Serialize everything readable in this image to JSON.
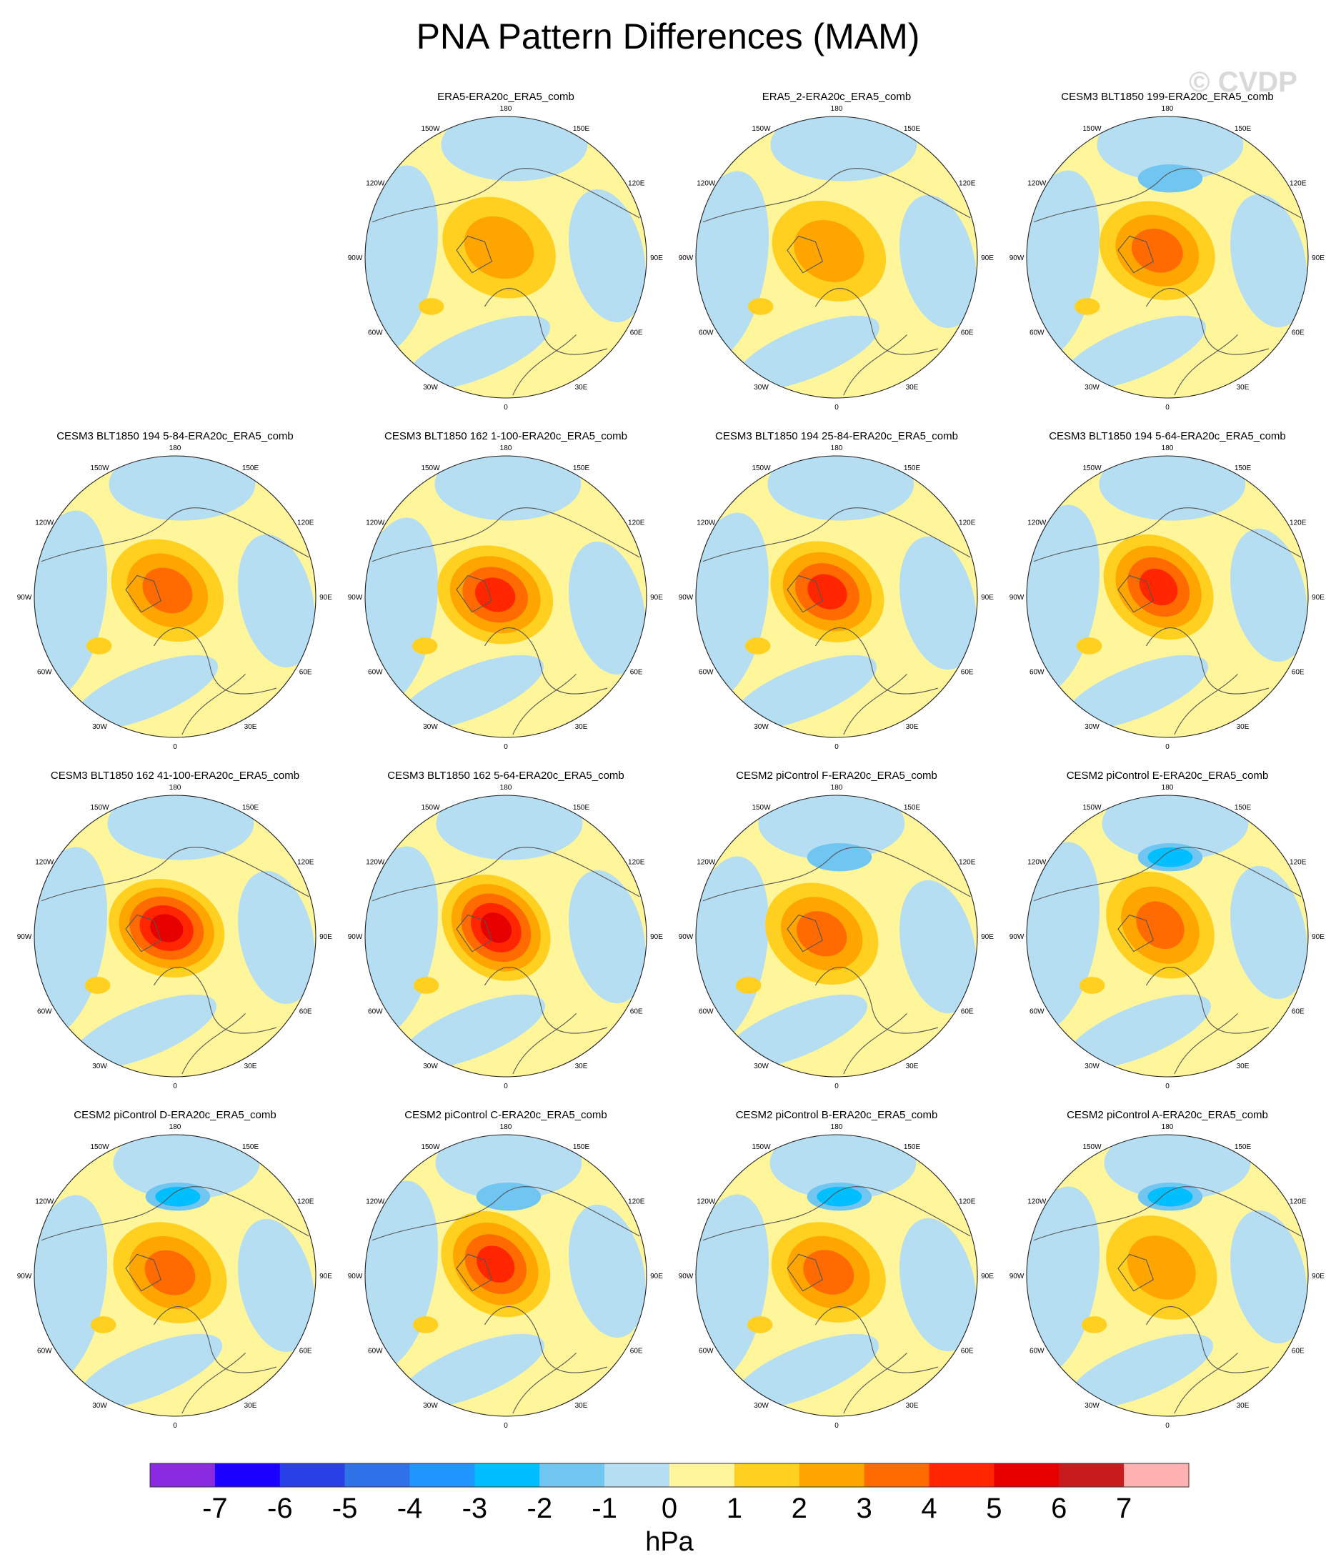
{
  "title": "PNA Pattern Differences (MAM)",
  "watermark": "© CVDP",
  "chart_data": {
    "type": "contour-map-panels",
    "title": "PNA Pattern Differences (MAM)",
    "projection": "north-polar-stereographic",
    "variable": "PNA pattern sea level pressure difference",
    "units": "hPa",
    "longitude_labels": [
      "180",
      "150E",
      "120E",
      "90E",
      "60E",
      "30E",
      "0",
      "30W",
      "60W",
      "90W",
      "120W",
      "150W"
    ],
    "colorbar": {
      "label": "hPa",
      "ticks": [
        "-7",
        "-6",
        "-5",
        "-4",
        "-3",
        "-2",
        "-1",
        "0",
        "1",
        "2",
        "3",
        "4",
        "5",
        "6",
        "7"
      ],
      "colors": [
        "#8a2be2",
        "#1c00ff",
        "#2841e6",
        "#2f72e8",
        "#1f96ff",
        "#00bfff",
        "#70c5f1",
        "#b5def3",
        "#fff59b",
        "#ffd020",
        "#ffa500",
        "#ff6b00",
        "#ff2600",
        "#e60000",
        "#c81c1c",
        "#ffb0b0"
      ]
    },
    "panels": [
      {
        "title": "ERA5-ERA20c_ERA5_comb",
        "row": 1,
        "col": 2,
        "min_hPa": -1,
        "max_hPa": 2
      },
      {
        "title": "ERA5_2-ERA20c_ERA5_comb",
        "row": 1,
        "col": 3,
        "min_hPa": -1,
        "max_hPa": 2
      },
      {
        "title": "CESM3 BLT1850 199-ERA20c_ERA5_comb",
        "row": 1,
        "col": 4,
        "min_hPa": -2,
        "max_hPa": 3
      },
      {
        "title": "CESM3 BLT1850 194 5-84-ERA20c_ERA5_comb",
        "row": 2,
        "col": 1,
        "min_hPa": -1,
        "max_hPa": 3
      },
      {
        "title": "CESM3 BLT1850 162 1-100-ERA20c_ERA5_comb",
        "row": 2,
        "col": 2,
        "min_hPa": -1,
        "max_hPa": 4
      },
      {
        "title": "CESM3 BLT1850 194 25-84-ERA20c_ERA5_comb",
        "row": 2,
        "col": 3,
        "min_hPa": -1,
        "max_hPa": 4
      },
      {
        "title": "CESM3 BLT1850 194 5-64-ERA20c_ERA5_comb",
        "row": 2,
        "col": 4,
        "min_hPa": -1,
        "max_hPa": 4
      },
      {
        "title": "CESM3 BLT1850 162 41-100-ERA20c_ERA5_comb",
        "row": 3,
        "col": 1,
        "min_hPa": -1,
        "max_hPa": 5
      },
      {
        "title": "CESM3 BLT1850 162 5-64-ERA20c_ERA5_comb",
        "row": 3,
        "col": 2,
        "min_hPa": -1,
        "max_hPa": 5
      },
      {
        "title": "CESM2 piControl F-ERA20c_ERA5_comb",
        "row": 3,
        "col": 3,
        "min_hPa": -2,
        "max_hPa": 3
      },
      {
        "title": "CESM2 piControl E-ERA20c_ERA5_comb",
        "row": 3,
        "col": 4,
        "min_hPa": -3,
        "max_hPa": 3
      },
      {
        "title": "CESM2 piControl D-ERA20c_ERA5_comb",
        "row": 4,
        "col": 1,
        "min_hPa": -3,
        "max_hPa": 3
      },
      {
        "title": "CESM2 piControl C-ERA20c_ERA5_comb",
        "row": 4,
        "col": 2,
        "min_hPa": -2,
        "max_hPa": 4
      },
      {
        "title": "CESM2 piControl B-ERA20c_ERA5_comb",
        "row": 4,
        "col": 3,
        "min_hPa": -3,
        "max_hPa": 3
      },
      {
        "title": "CESM2 piControl A-ERA20c_ERA5_comb",
        "row": 4,
        "col": 4,
        "min_hPa": -3,
        "max_hPa": 2
      }
    ]
  }
}
